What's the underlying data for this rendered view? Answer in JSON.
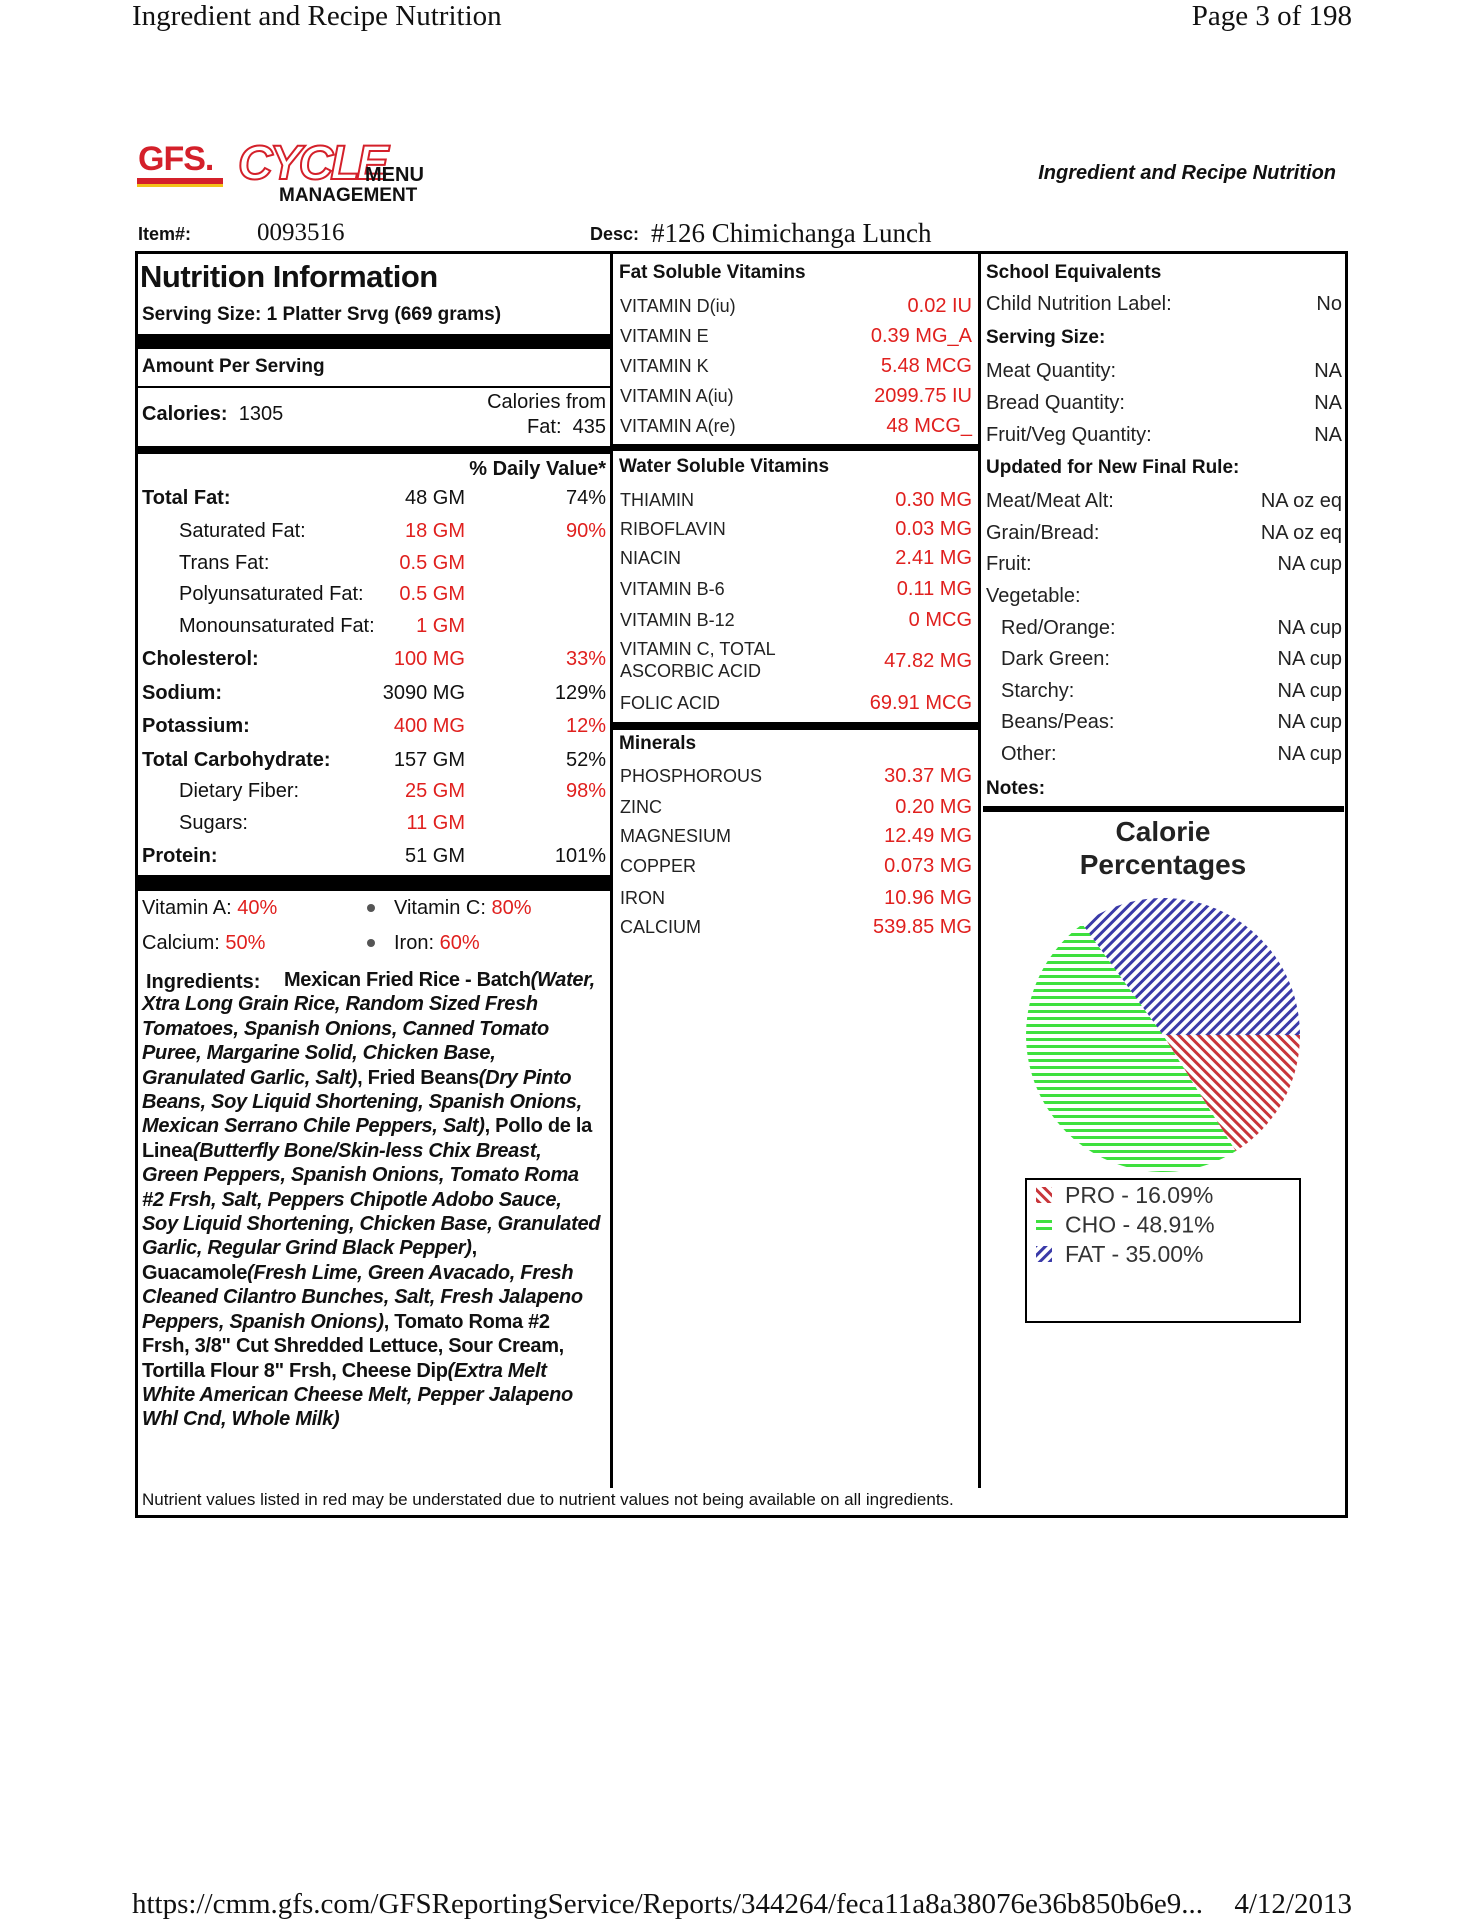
{
  "header": {
    "title": "Ingredient and Recipe Nutrition",
    "page": "Page 3 of 198"
  },
  "logo": {
    "brand": "GFS.",
    "product": "CYCLE",
    "menu": "MENU",
    "management": "MANAGEMENT"
  },
  "report_title": "Ingredient and Recipe Nutrition",
  "item": {
    "label": "Item#:",
    "value": "0093516",
    "desc_label": "Desc:",
    "desc": "#126 Chimichanga Lunch"
  },
  "nutrition": {
    "title": "Nutrition Information",
    "serving": "Serving Size:  1 Platter Srvg (669 grams)",
    "amount_per_serving": "Amount Per Serving",
    "calories_label": "Calories:",
    "calories": "1305",
    "fat_calories_label": "Calories from Fat:",
    "fat_calories": "435",
    "dv_header": "% Daily Value*",
    "rows": [
      {
        "label": "Total Fat:",
        "amount": "48 GM",
        "dv": "74%"
      },
      {
        "label": "Saturated Fat:",
        "amount": "18 GM",
        "dv": "90%"
      },
      {
        "label": "Trans Fat:",
        "amount": "0.5 GM"
      },
      {
        "label": "Polyunsaturated Fat:",
        "amount": "0.5 GM"
      },
      {
        "label": "Monounsaturated Fat:",
        "amount": "1 GM"
      },
      {
        "label": "Cholesterol:",
        "amount": "100 MG",
        "dv": "33%"
      },
      {
        "label": "Sodium:",
        "amount": "3090 MG",
        "dv": "129%"
      },
      {
        "label": "Potassium:",
        "amount": "400 MG",
        "dv": "12%"
      },
      {
        "label": "Total Carbohydrate:",
        "amount": "157 GM",
        "dv": "52%"
      },
      {
        "label": "Dietary Fiber:",
        "amount": "25 GM",
        "dv": "98%"
      },
      {
        "label": "Sugars:",
        "amount": "11 GM"
      },
      {
        "label": "Protein:",
        "amount": "51 GM",
        "dv": "101%"
      }
    ],
    "vitamins": [
      {
        "label": "Vitamin A:",
        "value": "40%"
      },
      {
        "label": "Vitamin C:",
        "value": "80%"
      },
      {
        "label": "Calcium:",
        "value": "50%"
      },
      {
        "label": "Iron:",
        "value": "60%"
      }
    ],
    "ingredients_label": "Ingredients:",
    "ingredients": [
      "Mexican Fried Rice - Batch",
      "(Water,  Xtra Long Grain Rice,  Random Sized Fresh Tomatoes,  Spanish Onions,  Canned Tomato Puree,  Margarine Solid,  Chicken Base,  Granulated Garlic,  Salt)",
      ",  Fried Beans",
      "(Dry Pinto Beans,  Soy Liquid Shortening,  Spanish Onions,  Mexican Serrano Chile Peppers,  Salt)",
      ",  Pollo de la Linea",
      "(Butterfly Bone/Skin-less Chix Breast,  Green Peppers,  Spanish Onions,  Tomato Roma #2 Frsh,  Salt,  Peppers Chipotle Adobo Sauce,  Soy Liquid Shortening,  Chicken Base,  Granulated Garlic,  Regular Grind Black Pepper)",
      ",  Guacamole",
      "(Fresh Lime,  Green Avacado,  Fresh Cleaned Cilantro Bunches,  Salt,  Fresh Jalapeno Peppers,  Spanish Onions)",
      ",  Tomato Roma #2 Frsh,  3/8\" Cut Shredded Lettuce,  Sour Cream,  Tortilla Flour 8\" Frsh,  Cheese Dip",
      "(Extra Melt White American Cheese Melt,  Pepper Jalapeno Whl Cnd,  Whole Milk)"
    ]
  },
  "vitamins_minerals": {
    "fat_soluble": {
      "title": "Fat Soluble Vitamins",
      "rows": [
        [
          "VITAMIN D(iu)",
          "0.02 IU"
        ],
        [
          "VITAMIN E",
          "0.39 MG_A"
        ],
        [
          "VITAMIN K",
          "5.48 MCG"
        ],
        [
          "VITAMIN A(iu)",
          "2099.75 IU"
        ],
        [
          "VITAMIN A(re)",
          "48 MCG_"
        ]
      ]
    },
    "water_soluble": {
      "title": "Water Soluble Vitamins",
      "rows": [
        [
          "THIAMIN",
          "0.30 MG"
        ],
        [
          "RIBOFLAVIN",
          "0.03 MG"
        ],
        [
          "NIACIN",
          "2.41 MG"
        ],
        [
          "VITAMIN B-6",
          "0.11 MG"
        ],
        [
          "VITAMIN B-12",
          "0 MCG"
        ],
        [
          "VITAMIN C, TOTAL ASCORBIC ACID",
          "47.82 MG"
        ],
        [
          "FOLIC ACID",
          "69.91 MCG"
        ]
      ]
    },
    "minerals": {
      "title": "Minerals",
      "rows": [
        [
          "PHOSPHOROUS",
          "30.37 MG"
        ],
        [
          "ZINC",
          "0.20 MG"
        ],
        [
          "MAGNESIUM",
          "12.49 MG"
        ],
        [
          "COPPER",
          "0.073 MG"
        ],
        [
          "IRON",
          "10.96 MG"
        ],
        [
          "CALCIUM",
          "539.85 MG"
        ]
      ]
    }
  },
  "school": {
    "title": "School Equivalents",
    "items": [
      {
        "label": "Child Nutrition Label:",
        "value": "No"
      },
      {
        "label": "Serving Size:"
      },
      {
        "label": "Meat Quantity:",
        "value": "NA"
      },
      {
        "label": "Bread Quantity:",
        "value": "NA"
      },
      {
        "label": "Fruit/Veg Quantity:",
        "value": "NA"
      },
      {
        "label": "Updated for New Final Rule:"
      },
      {
        "label": "Meat/Meat Alt:",
        "value": "NA oz eq"
      },
      {
        "label": "Grain/Bread:",
        "value": "NA oz eq"
      },
      {
        "label": "Fruit:",
        "value": "NA cup"
      },
      {
        "label": "Vegetable:"
      },
      {
        "label": "Red/Orange:",
        "value": "NA cup"
      },
      {
        "label": "Dark Green:",
        "value": "NA cup"
      },
      {
        "label": "Starchy:",
        "value": "NA cup"
      },
      {
        "label": "Beans/Peas:",
        "value": "NA cup"
      },
      {
        "label": "Other:",
        "value": "NA cup"
      },
      {
        "label": "Notes:"
      }
    ]
  },
  "chart_data": {
    "type": "pie",
    "title": "Calorie Percentages",
    "values": [
      16.09,
      48.91,
      35
    ],
    "value_labels": [
      "PRO - 16.09%",
      "CHO - 48.91%",
      "FAT - 35.00%"
    ],
    "colors": [
      "#c8353a",
      "#3ee03e",
      "#3a3aa8"
    ]
  },
  "note": "Nutrient values listed in red may be understated due to nutrient values not being available on all ingredients.",
  "footer": {
    "url": "https://cmm.gfs.com/GFSReportingService/Reports/344264/feca11a8a38076e36b850b6e9...",
    "date": "4/12/2013"
  }
}
